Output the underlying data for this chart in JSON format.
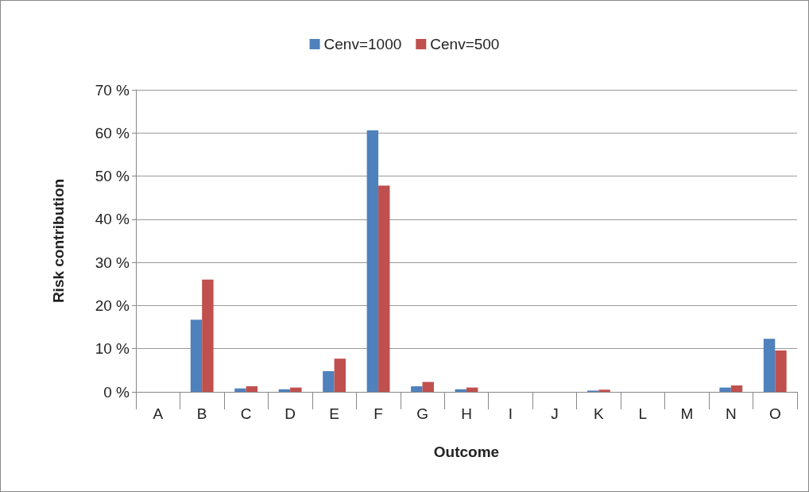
{
  "chart_data": {
    "type": "bar",
    "xlabel": "Outcome",
    "ylabel": "Risk contribution",
    "categories": [
      "A",
      "B",
      "C",
      "D",
      "E",
      "F",
      "G",
      "H",
      "I",
      "J",
      "K",
      "L",
      "M",
      "N",
      "O"
    ],
    "series": [
      {
        "name": "Cenv=1000",
        "color": "#4f81bd",
        "values": [
          0,
          16.7,
          0.8,
          0.6,
          4.8,
          60.6,
          1.3,
          0.6,
          0,
          0,
          0.3,
          0,
          0,
          1.0,
          12.3
        ]
      },
      {
        "name": "Cenv=500",
        "color": "#c0504d",
        "values": [
          0,
          26.0,
          1.3,
          1.0,
          7.7,
          47.8,
          2.3,
          1.0,
          0,
          0,
          0.5,
          0,
          0,
          1.5,
          9.6
        ]
      }
    ],
    "ylim": [
      0,
      70
    ],
    "yticks": [
      {
        "value": 0,
        "label": "0 %"
      },
      {
        "value": 10,
        "label": "10 %"
      },
      {
        "value": 20,
        "label": "20 %"
      },
      {
        "value": 30,
        "label": "30 %"
      },
      {
        "value": 40,
        "label": "40 %"
      },
      {
        "value": 50,
        "label": "50 %"
      },
      {
        "value": 60,
        "label": "60 %"
      },
      {
        "value": 70,
        "label": "70 %"
      }
    ],
    "grid": "y",
    "legend": "top"
  }
}
